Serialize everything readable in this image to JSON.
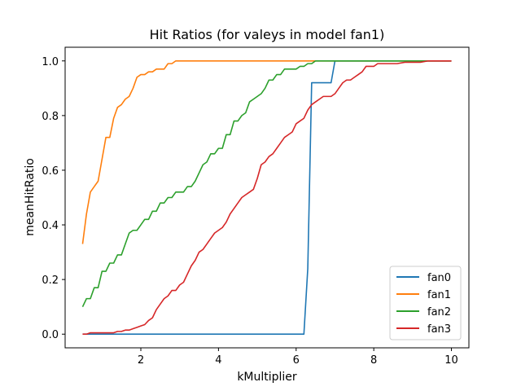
{
  "chart_data": {
    "type": "line",
    "title": "Hit Ratios (for valeys in model fan1)",
    "xlabel": "kMultiplier",
    "ylabel": "meanHitRatio",
    "xlim": [
      0.05,
      10.45
    ],
    "ylim": [
      -0.05,
      1.05
    ],
    "xticks": [
      2,
      4,
      6,
      8,
      10
    ],
    "yticks": [
      0.0,
      0.2,
      0.4,
      0.6,
      0.8,
      1.0
    ],
    "grid": false,
    "legend_position": "lower right",
    "series": [
      {
        "name": "fan0",
        "color": "#1f77b4",
        "points": [
          [
            0.5,
            0
          ],
          [
            1,
            0
          ],
          [
            2,
            0
          ],
          [
            3,
            0
          ],
          [
            4,
            0
          ],
          [
            5,
            0
          ],
          [
            6,
            0
          ],
          [
            6.2,
            0
          ],
          [
            6.3,
            0.24
          ],
          [
            6.4,
            0.92
          ],
          [
            6.6,
            0.92
          ],
          [
            6.8,
            0.92
          ],
          [
            6.9,
            0.92
          ],
          [
            7.0,
            1.0
          ],
          [
            8,
            1.0
          ],
          [
            9,
            1.0
          ],
          [
            10,
            1.0
          ]
        ]
      },
      {
        "name": "fan1",
        "color": "#ff7f0e",
        "points": [
          [
            0.5,
            0.33
          ],
          [
            0.6,
            0.44
          ],
          [
            0.7,
            0.52
          ],
          [
            0.8,
            0.54
          ],
          [
            0.9,
            0.56
          ],
          [
            1.0,
            0.64
          ],
          [
            1.1,
            0.72
          ],
          [
            1.2,
            0.72
          ],
          [
            1.3,
            0.79
          ],
          [
            1.4,
            0.83
          ],
          [
            1.5,
            0.84
          ],
          [
            1.6,
            0.86
          ],
          [
            1.7,
            0.87
          ],
          [
            1.8,
            0.9
          ],
          [
            1.9,
            0.94
          ],
          [
            2.0,
            0.95
          ],
          [
            2.1,
            0.95
          ],
          [
            2.2,
            0.96
          ],
          [
            2.3,
            0.96
          ],
          [
            2.4,
            0.97
          ],
          [
            2.6,
            0.97
          ],
          [
            2.7,
            0.99
          ],
          [
            2.8,
            0.99
          ],
          [
            2.9,
            1.0
          ],
          [
            3.5,
            1.0
          ],
          [
            4,
            1.0
          ],
          [
            5,
            1.0
          ],
          [
            6,
            1.0
          ],
          [
            7,
            1.0
          ],
          [
            8,
            1.0
          ],
          [
            9,
            1.0
          ],
          [
            10,
            1.0
          ]
        ]
      },
      {
        "name": "fan2",
        "color": "#2ca02c",
        "points": [
          [
            0.5,
            0.1
          ],
          [
            0.6,
            0.13
          ],
          [
            0.7,
            0.13
          ],
          [
            0.8,
            0.17
          ],
          [
            0.9,
            0.17
          ],
          [
            1.0,
            0.23
          ],
          [
            1.1,
            0.23
          ],
          [
            1.2,
            0.26
          ],
          [
            1.3,
            0.26
          ],
          [
            1.4,
            0.29
          ],
          [
            1.5,
            0.29
          ],
          [
            1.6,
            0.33
          ],
          [
            1.7,
            0.37
          ],
          [
            1.8,
            0.38
          ],
          [
            1.9,
            0.38
          ],
          [
            2.0,
            0.4
          ],
          [
            2.1,
            0.42
          ],
          [
            2.2,
            0.42
          ],
          [
            2.3,
            0.45
          ],
          [
            2.4,
            0.45
          ],
          [
            2.5,
            0.48
          ],
          [
            2.6,
            0.48
          ],
          [
            2.7,
            0.5
          ],
          [
            2.8,
            0.5
          ],
          [
            2.9,
            0.52
          ],
          [
            3.0,
            0.52
          ],
          [
            3.1,
            0.52
          ],
          [
            3.2,
            0.54
          ],
          [
            3.3,
            0.54
          ],
          [
            3.4,
            0.56
          ],
          [
            3.5,
            0.59
          ],
          [
            3.6,
            0.62
          ],
          [
            3.7,
            0.63
          ],
          [
            3.8,
            0.66
          ],
          [
            3.9,
            0.66
          ],
          [
            4.0,
            0.68
          ],
          [
            4.1,
            0.68
          ],
          [
            4.2,
            0.73
          ],
          [
            4.3,
            0.73
          ],
          [
            4.4,
            0.78
          ],
          [
            4.5,
            0.78
          ],
          [
            4.6,
            0.8
          ],
          [
            4.7,
            0.81
          ],
          [
            4.8,
            0.85
          ],
          [
            4.9,
            0.86
          ],
          [
            5.0,
            0.87
          ],
          [
            5.1,
            0.88
          ],
          [
            5.2,
            0.9
          ],
          [
            5.3,
            0.93
          ],
          [
            5.4,
            0.93
          ],
          [
            5.5,
            0.95
          ],
          [
            5.6,
            0.95
          ],
          [
            5.7,
            0.97
          ],
          [
            5.8,
            0.97
          ],
          [
            5.9,
            0.97
          ],
          [
            6.0,
            0.97
          ],
          [
            6.1,
            0.98
          ],
          [
            6.2,
            0.98
          ],
          [
            6.3,
            0.99
          ],
          [
            6.4,
            0.99
          ],
          [
            6.5,
            1.0
          ],
          [
            7,
            1.0
          ],
          [
            8,
            1.0
          ],
          [
            9,
            1.0
          ],
          [
            10,
            1.0
          ]
        ]
      },
      {
        "name": "fan3",
        "color": "#d62728",
        "points": [
          [
            0.5,
            0
          ],
          [
            0.6,
            0
          ],
          [
            0.7,
            0.005
          ],
          [
            0.8,
            0.005
          ],
          [
            1.0,
            0.005
          ],
          [
            1.2,
            0.005
          ],
          [
            1.3,
            0.005
          ],
          [
            1.4,
            0.01
          ],
          [
            1.5,
            0.01
          ],
          [
            1.6,
            0.015
          ],
          [
            1.7,
            0.015
          ],
          [
            1.8,
            0.02
          ],
          [
            1.9,
            0.025
          ],
          [
            2.0,
            0.03
          ],
          [
            2.1,
            0.035
          ],
          [
            2.2,
            0.05
          ],
          [
            2.3,
            0.06
          ],
          [
            2.4,
            0.09
          ],
          [
            2.5,
            0.11
          ],
          [
            2.6,
            0.13
          ],
          [
            2.7,
            0.14
          ],
          [
            2.8,
            0.16
          ],
          [
            2.9,
            0.16
          ],
          [
            3.0,
            0.18
          ],
          [
            3.1,
            0.19
          ],
          [
            3.2,
            0.22
          ],
          [
            3.3,
            0.25
          ],
          [
            3.4,
            0.27
          ],
          [
            3.5,
            0.3
          ],
          [
            3.6,
            0.31
          ],
          [
            3.7,
            0.33
          ],
          [
            3.8,
            0.35
          ],
          [
            3.9,
            0.37
          ],
          [
            4.0,
            0.38
          ],
          [
            4.1,
            0.39
          ],
          [
            4.2,
            0.41
          ],
          [
            4.3,
            0.44
          ],
          [
            4.4,
            0.46
          ],
          [
            4.5,
            0.48
          ],
          [
            4.6,
            0.5
          ],
          [
            4.7,
            0.51
          ],
          [
            4.8,
            0.52
          ],
          [
            4.9,
            0.53
          ],
          [
            5.0,
            0.57
          ],
          [
            5.1,
            0.62
          ],
          [
            5.2,
            0.63
          ],
          [
            5.3,
            0.65
          ],
          [
            5.4,
            0.66
          ],
          [
            5.5,
            0.68
          ],
          [
            5.6,
            0.7
          ],
          [
            5.7,
            0.72
          ],
          [
            5.8,
            0.73
          ],
          [
            5.9,
            0.74
          ],
          [
            6.0,
            0.77
          ],
          [
            6.1,
            0.78
          ],
          [
            6.2,
            0.79
          ],
          [
            6.3,
            0.82
          ],
          [
            6.4,
            0.84
          ],
          [
            6.5,
            0.85
          ],
          [
            6.6,
            0.86
          ],
          [
            6.7,
            0.87
          ],
          [
            6.8,
            0.87
          ],
          [
            6.9,
            0.87
          ],
          [
            7.0,
            0.88
          ],
          [
            7.1,
            0.9
          ],
          [
            7.2,
            0.92
          ],
          [
            7.3,
            0.93
          ],
          [
            7.4,
            0.93
          ],
          [
            7.5,
            0.94
          ],
          [
            7.6,
            0.95
          ],
          [
            7.7,
            0.96
          ],
          [
            7.8,
            0.98
          ],
          [
            7.9,
            0.98
          ],
          [
            8.0,
            0.98
          ],
          [
            8.1,
            0.99
          ],
          [
            8.2,
            0.99
          ],
          [
            8.4,
            0.99
          ],
          [
            8.6,
            0.99
          ],
          [
            8.8,
            0.995
          ],
          [
            9.0,
            0.995
          ],
          [
            9.2,
            0.995
          ],
          [
            9.4,
            1.0
          ],
          [
            10,
            1.0
          ]
        ]
      }
    ]
  }
}
